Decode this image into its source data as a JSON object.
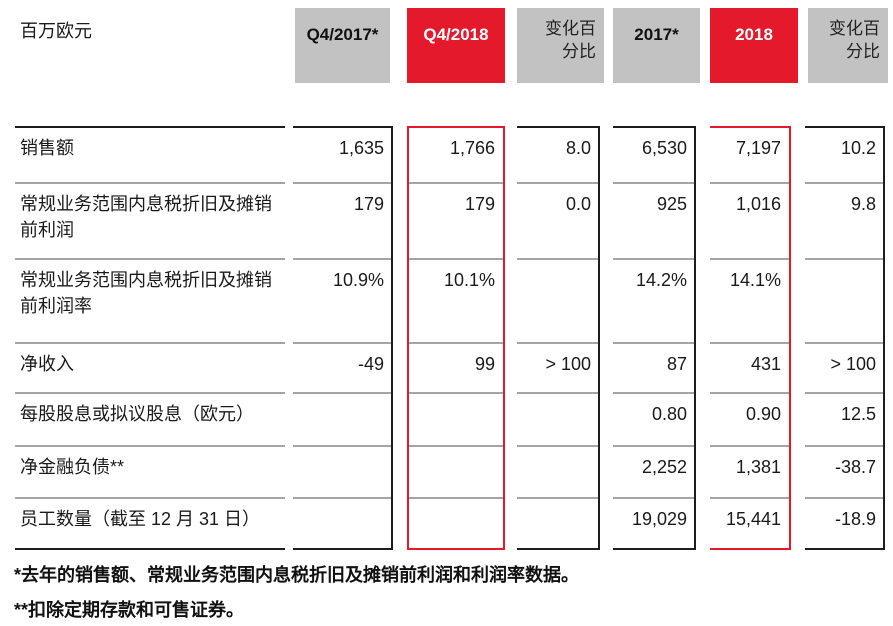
{
  "table": {
    "unit_label": "百万欧元",
    "columns": [
      {
        "id": "q4_2017",
        "label": "Q4/2017*",
        "style": "gray"
      },
      {
        "id": "q4_2018",
        "label": "Q4/2018",
        "style": "red"
      },
      {
        "id": "chg_q",
        "label": "变化百分比",
        "style": "graynote"
      },
      {
        "id": "fy_2017",
        "label": "2017*",
        "style": "gray"
      },
      {
        "id": "fy_2018",
        "label": "2018",
        "style": "red"
      },
      {
        "id": "chg_fy",
        "label": "变化百分比",
        "style": "graynote"
      }
    ],
    "rows": [
      {
        "label": "销售额",
        "values": [
          "1,635",
          "1,766",
          "8.0",
          "6,530",
          "7,197",
          "10.2"
        ]
      },
      {
        "label": "常规业务范围内息税折旧及摊销前利润",
        "values": [
          "179",
          "179",
          "0.0",
          "925",
          "1,016",
          "9.8"
        ]
      },
      {
        "label": "常规业务范围内息税折旧及摊销前利润率",
        "values": [
          "10.9%",
          "10.1%",
          "",
          "14.2%",
          "14.1%",
          ""
        ]
      },
      {
        "label": "净收入",
        "values": [
          "-49",
          "99",
          "> 100",
          "87",
          "431",
          "> 100"
        ]
      },
      {
        "label": "每股股息或拟议股息（欧元）",
        "values": [
          "",
          "",
          "",
          "0.80",
          "0.90",
          "12.5"
        ]
      },
      {
        "label": "净金融负债**",
        "values": [
          "",
          "",
          "",
          "2,252",
          "1,381",
          "-38.7"
        ]
      },
      {
        "label": "员工数量（截至 12 月 31 日）",
        "values": [
          "",
          "",
          "",
          "19,029",
          "15,441",
          "-18.9"
        ]
      }
    ],
    "footnotes": [
      "*去年的销售额、常规业务范围内息税折旧及摊销前利润和利润率数据。",
      "**扣除定期存款和可售证券。"
    ]
  },
  "colors": {
    "accent_red": "#e4192c",
    "header_gray": "#c2c2c2",
    "line_black": "#1d1d1b",
    "line_gray": "#a5a5a5"
  }
}
